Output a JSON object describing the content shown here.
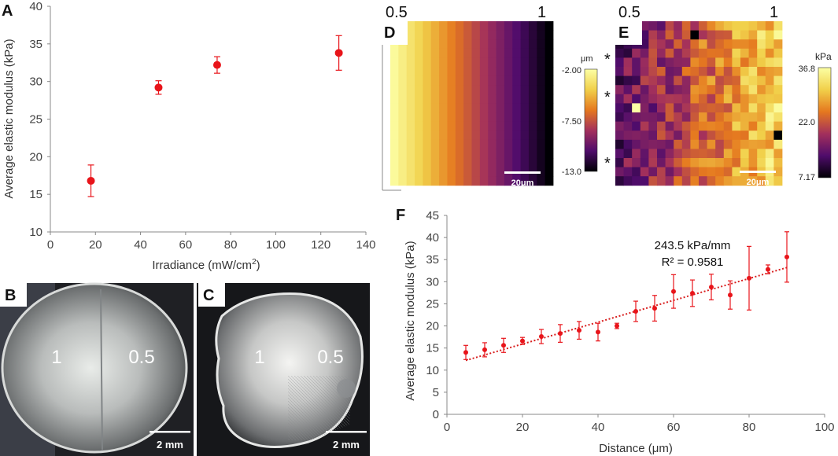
{
  "colors": {
    "marker": "#e8141a",
    "trendline": "#d81e1e",
    "axis": "#888888",
    "text": "#333333"
  },
  "panels": {
    "A": "A",
    "B": "B",
    "C": "C",
    "D": "D",
    "E": "E",
    "F": "F"
  },
  "photos": {
    "B": {
      "label_left": "1",
      "label_right": "0.5",
      "scale_bar": "2 mm"
    },
    "C": {
      "label_left": "1",
      "label_right": "0.5",
      "scale_bar": "2 mm"
    }
  },
  "maps": {
    "D": {
      "top_left": "0.5",
      "top_right": "1",
      "unit": "μm",
      "colorbar_ticks": [
        "-2.00",
        "-7.50",
        "-13.0"
      ],
      "scale_bar": "20μm"
    },
    "E": {
      "top_left": "0.5",
      "top_right": "1",
      "unit": "kPa",
      "colorbar_ticks": [
        "36.8",
        "22.0",
        "7.17"
      ],
      "scale_bar": "20μm",
      "asterisk": "*"
    }
  },
  "chart_data": [
    {
      "panel": "A",
      "type": "scatter",
      "title": "",
      "xlabel": "Irradiance (mW/cm²)",
      "xlabel_main": "Irradiance (mW/cm",
      "xlabel_sup": "2",
      "xlabel_end": ")",
      "ylabel": "Average elastic modulus (kPa)",
      "xlim": [
        0,
        140
      ],
      "ylim": [
        10,
        40
      ],
      "xticks": [
        0,
        20,
        40,
        60,
        80,
        100,
        120,
        140
      ],
      "yticks": [
        10,
        15,
        20,
        25,
        30,
        35,
        40
      ],
      "x": [
        18,
        48,
        74,
        128
      ],
      "y": [
        16.8,
        29.2,
        32.2,
        33.8
      ],
      "err": [
        2.1,
        0.9,
        1.1,
        2.3
      ]
    },
    {
      "panel": "F",
      "type": "scatter",
      "title": "",
      "xlabel": "Distance (μm)",
      "ylabel": "Average elastic modulus (kPa)",
      "xlim": [
        0,
        100
      ],
      "ylim": [
        0,
        45
      ],
      "xticks": [
        0,
        20,
        40,
        60,
        80,
        100
      ],
      "yticks": [
        0,
        5,
        10,
        15,
        20,
        25,
        30,
        35,
        40,
        45
      ],
      "x": [
        5,
        10,
        15,
        20,
        25,
        30,
        35,
        40,
        45,
        50,
        55,
        60,
        65,
        70,
        75,
        80,
        85,
        90
      ],
      "y": [
        14.0,
        14.6,
        15.6,
        16.6,
        17.6,
        18.3,
        19.0,
        18.6,
        20.0,
        23.3,
        24.0,
        27.8,
        27.4,
        28.8,
        27.0,
        30.8,
        32.8,
        35.6
      ],
      "err": [
        1.6,
        1.6,
        1.6,
        0.8,
        1.6,
        2.0,
        2.0,
        2.0,
        0.6,
        2.3,
        2.9,
        3.8,
        3.0,
        2.9,
        3.2,
        7.2,
        1.0,
        5.7
      ],
      "trendline": {
        "slope_label": "243.5 kPa/mm",
        "r2_label": "R² = 0.9581",
        "x": [
          5,
          90
        ],
        "y": [
          12.2,
          33.2
        ]
      }
    }
  ]
}
